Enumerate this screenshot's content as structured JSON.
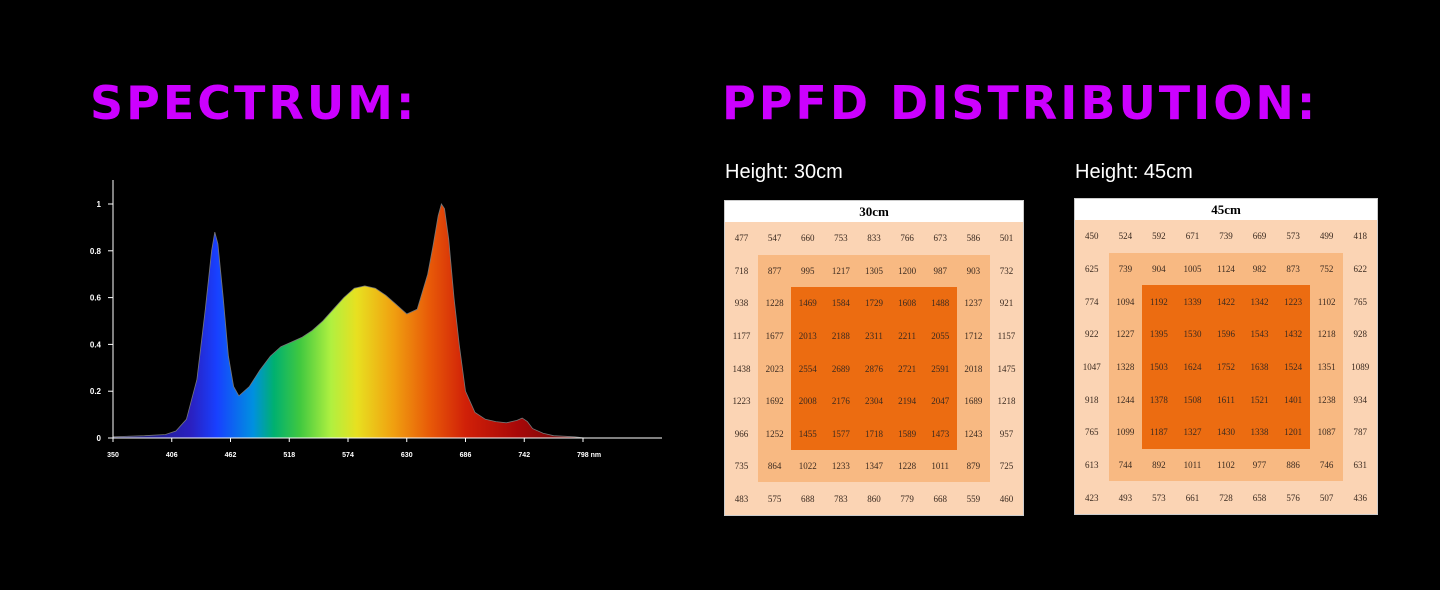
{
  "headings": {
    "spectrum": "SPECTRUM:",
    "ppfd": "PPFD DISTRIBUTION:",
    "color": "#cc00ff"
  },
  "chart_data": [
    {
      "type": "area",
      "title": "",
      "xlabel": "",
      "ylabel": "",
      "x_ticks": [
        "350",
        "406",
        "462",
        "518",
        "574",
        "630",
        "686",
        "742",
        "798 nm"
      ],
      "y_ticks": [
        "0",
        "0.2",
        "0.4",
        "0.6",
        "0.8",
        "1"
      ],
      "xlim": [
        350,
        812
      ],
      "ylim": [
        0,
        1.1
      ],
      "grid": false,
      "x": [
        350,
        380,
        400,
        410,
        420,
        430,
        438,
        444,
        447,
        450,
        455,
        460,
        465,
        470,
        480,
        490,
        500,
        510,
        520,
        530,
        540,
        550,
        560,
        570,
        580,
        590,
        600,
        610,
        620,
        630,
        640,
        650,
        655,
        660,
        663,
        666,
        670,
        675,
        680,
        686,
        695,
        705,
        715,
        725,
        735,
        740,
        745,
        750,
        760,
        770,
        790,
        800
      ],
      "y": [
        0.005,
        0.01,
        0.015,
        0.03,
        0.08,
        0.25,
        0.55,
        0.8,
        0.88,
        0.83,
        0.6,
        0.35,
        0.22,
        0.18,
        0.22,
        0.29,
        0.35,
        0.39,
        0.41,
        0.43,
        0.46,
        0.5,
        0.55,
        0.6,
        0.64,
        0.65,
        0.64,
        0.61,
        0.57,
        0.53,
        0.55,
        0.7,
        0.82,
        0.95,
        1.0,
        0.98,
        0.85,
        0.6,
        0.4,
        0.2,
        0.11,
        0.08,
        0.07,
        0.065,
        0.075,
        0.085,
        0.07,
        0.04,
        0.02,
        0.01,
        0.005,
        0.0
      ]
    },
    {
      "type": "heatmap",
      "title": "30cm",
      "rows": [
        [
          "477",
          "547",
          "660",
          "753",
          "833",
          "766",
          "673",
          "586",
          "501"
        ],
        [
          "718",
          "877",
          "995",
          "1217",
          "1305",
          "1200",
          "987",
          "903",
          "732"
        ],
        [
          "938",
          "1228",
          "1469",
          "1584",
          "1729",
          "1608",
          "1488",
          "1237",
          "921"
        ],
        [
          "1177",
          "1677",
          "2013",
          "2188",
          "2311",
          "2211",
          "2055",
          "1712",
          "1157"
        ],
        [
          "1438",
          "2023",
          "2554",
          "2689",
          "2876",
          "2721",
          "2591",
          "2018",
          "1475"
        ],
        [
          "1223",
          "1692",
          "2008",
          "2176",
          "2304",
          "2194",
          "2047",
          "1689",
          "1218"
        ],
        [
          "966",
          "1252",
          "1455",
          "1577",
          "1718",
          "1589",
          "1473",
          "1243",
          "957"
        ],
        [
          "735",
          "864",
          "1022",
          "1233",
          "1347",
          "1228",
          "1011",
          "879",
          "725"
        ],
        [
          "483",
          "575",
          "688",
          "783",
          "860",
          "779",
          "668",
          "559",
          "460"
        ]
      ]
    },
    {
      "type": "heatmap",
      "title": "45cm",
      "rows": [
        [
          "450",
          "524",
          "592",
          "671",
          "739",
          "669",
          "573",
          "499",
          "418"
        ],
        [
          "625",
          "739",
          "904",
          "1005",
          "1124",
          "982",
          "873",
          "752",
          "622"
        ],
        [
          "774",
          "1094",
          "1192",
          "1339",
          "1422",
          "1342",
          "1223",
          "1102",
          "765"
        ],
        [
          "922",
          "1227",
          "1395",
          "1530",
          "1596",
          "1543",
          "1432",
          "1218",
          "928"
        ],
        [
          "1047",
          "1328",
          "1503",
          "1624",
          "1752",
          "1638",
          "1524",
          "1351",
          "1089"
        ],
        [
          "918",
          "1244",
          "1378",
          "1508",
          "1611",
          "1521",
          "1401",
          "1238",
          "934"
        ],
        [
          "765",
          "1099",
          "1187",
          "1327",
          "1430",
          "1338",
          "1201",
          "1087",
          "787"
        ],
        [
          "613",
          "744",
          "892",
          "1011",
          "1102",
          "977",
          "886",
          "746",
          "631"
        ],
        [
          "423",
          "493",
          "573",
          "661",
          "728",
          "658",
          "576",
          "507",
          "436"
        ]
      ]
    }
  ],
  "heights": {
    "h30": "Height: 30cm",
    "h45": "Height: 45cm"
  },
  "colors": {
    "outer": "#fbd4b4",
    "middle": "#f8b982",
    "core": "#ec6c11"
  }
}
